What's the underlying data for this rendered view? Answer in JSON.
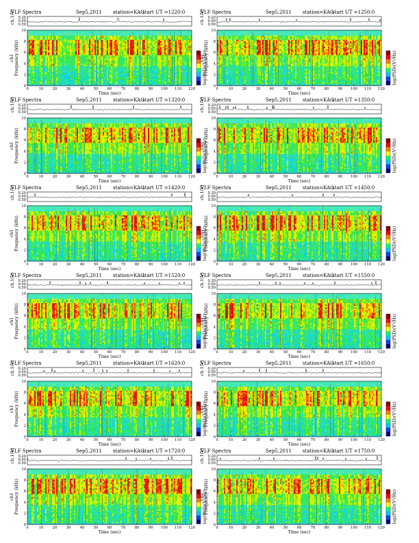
{
  "chart_data": {
    "type": "heatmap",
    "panel_labels": {
      "title_prefix": "VLF Spectra",
      "date": "Sep5,2011",
      "station": "station=KAG",
      "start_prefix": "start UT =",
      "xlabel": "Time (sec)",
      "ylabel_freq": "Frequency (kHz)",
      "ylabel_ch": "ch1",
      "ylabel_waveform": "ch.1(V)",
      "colorbar_label": "log(PSD)(V²/Hz)"
    },
    "x_range": [
      0,
      120
    ],
    "x_ticks": [
      0,
      10,
      20,
      30,
      40,
      50,
      60,
      70,
      80,
      90,
      100,
      110,
      120
    ],
    "y_range_khz": [
      0,
      10
    ],
    "y_ticks_khz": [
      0,
      2,
      4,
      6,
      8,
      10
    ],
    "waveform_ticks": [
      "0.20",
      "0.00",
      "0.50"
    ],
    "colorbar_colors": [
      "#00008b",
      "#0044ff",
      "#00c8ff",
      "#00ff80",
      "#ffff00",
      "#ff8000",
      "#ff0000",
      "#8b0000"
    ],
    "panels": [
      {
        "start_ut": "1220:0"
      },
      {
        "start_ut": "1250:0"
      },
      {
        "start_ut": "1320:0"
      },
      {
        "start_ut": "1350:0"
      },
      {
        "start_ut": "1420:0"
      },
      {
        "start_ut": "1450:0"
      },
      {
        "start_ut": "1520:0"
      },
      {
        "start_ut": "1550:0"
      },
      {
        "start_ut": "1620:0"
      },
      {
        "start_ut": "1650:0"
      },
      {
        "start_ut": "1720:0"
      },
      {
        "start_ut": "1750:0"
      }
    ]
  }
}
